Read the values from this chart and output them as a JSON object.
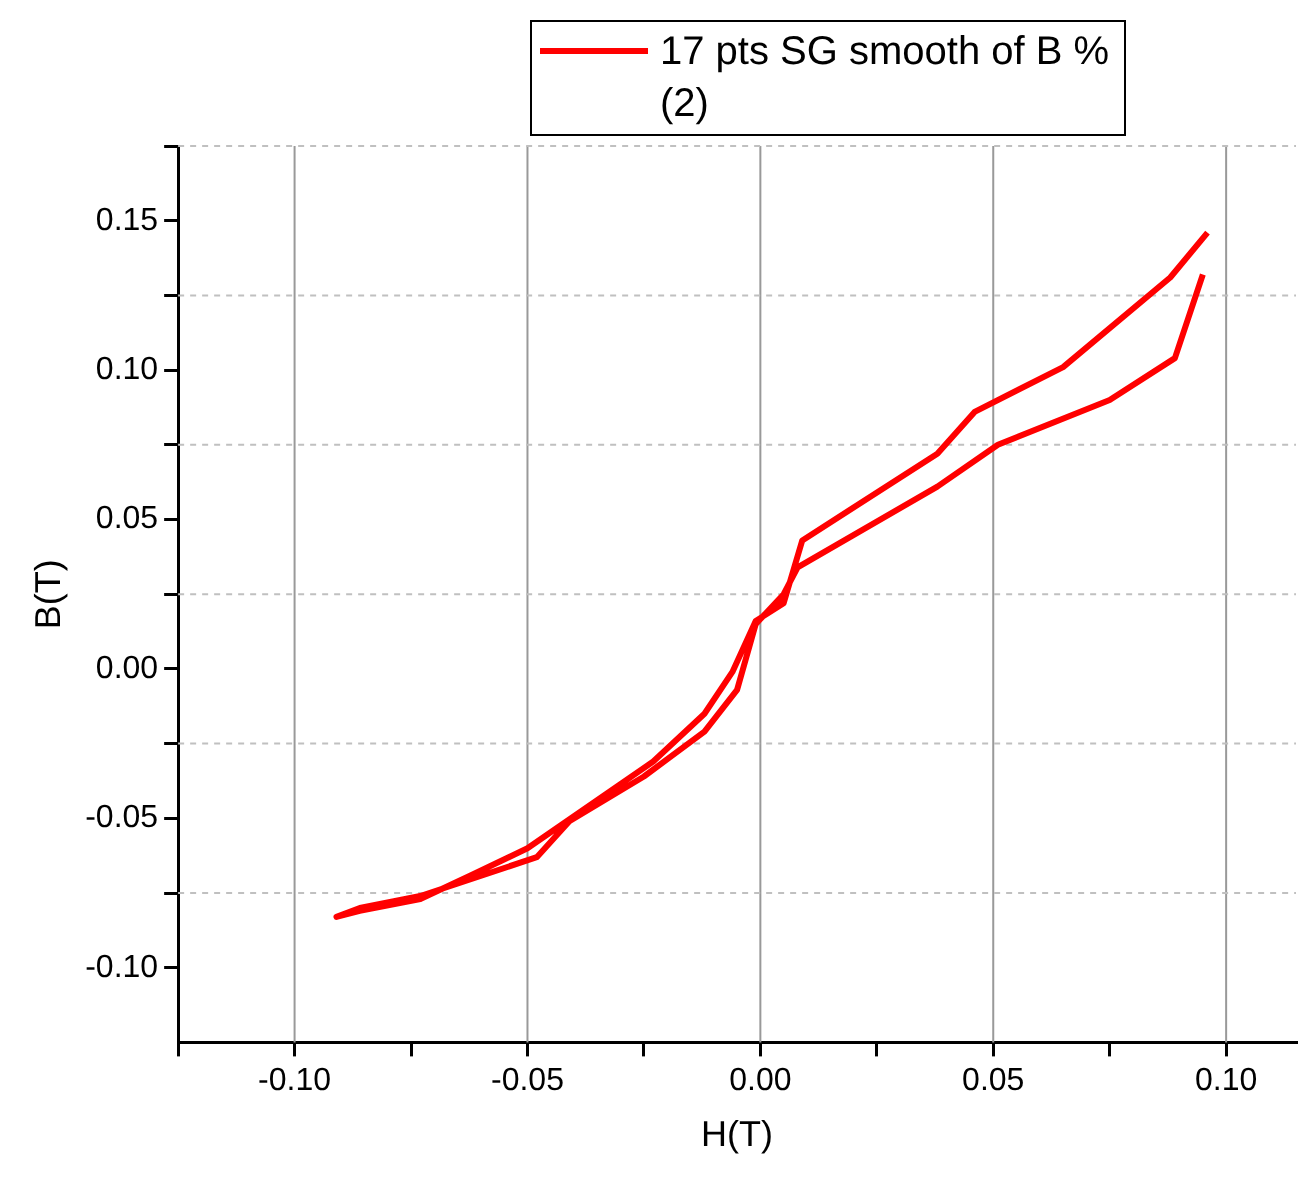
{
  "chart_data": {
    "type": "line",
    "xlabel": "H(T)",
    "ylabel": "B(T)",
    "xlim": [
      -0.125,
      0.115
    ],
    "ylim": [
      -0.125,
      0.175
    ],
    "xticks": [
      {
        "value": -0.125,
        "label": null
      },
      {
        "value": -0.1,
        "label": "-0.10"
      },
      {
        "value": -0.075,
        "label": null
      },
      {
        "value": -0.05,
        "label": "-0.05"
      },
      {
        "value": -0.025,
        "label": null
      },
      {
        "value": 0,
        "label": "0.00"
      },
      {
        "value": 0.025,
        "label": null
      },
      {
        "value": 0.05,
        "label": "0.05"
      },
      {
        "value": 0.075,
        "label": null
      },
      {
        "value": 0.1,
        "label": "0.10"
      }
    ],
    "yticks": [
      {
        "value": -0.1,
        "label": "-0.10"
      },
      {
        "value": -0.075,
        "label": null
      },
      {
        "value": -0.05,
        "label": "-0.05"
      },
      {
        "value": -0.025,
        "label": null
      },
      {
        "value": 0,
        "label": "0.00"
      },
      {
        "value": 0.025,
        "label": null
      },
      {
        "value": 0.05,
        "label": "0.05"
      },
      {
        "value": 0.075,
        "label": null
      },
      {
        "value": 0.1,
        "label": "0.10"
      },
      {
        "value": 0.125,
        "label": null
      },
      {
        "value": 0.15,
        "label": "0.15"
      },
      {
        "value": 0.175,
        "label": null
      }
    ],
    "grid": true,
    "legend": "top",
    "marker": "none",
    "line_style": "solid",
    "series": [
      {
        "name": "17 pts SG smooth of B % (2)",
        "color": "#ff0000",
        "x": [
          0.095,
          0.089,
          0.075,
          0.051,
          0.038,
          0.008,
          0.005,
          -0.001,
          -0.005,
          -0.012,
          -0.025,
          -0.041,
          -0.048,
          -0.073,
          -0.086,
          -0.091,
          -0.086,
          -0.073,
          -0.062,
          -0.05,
          -0.023,
          -0.012,
          -0.006,
          -0.001,
          0.005,
          0.009,
          0.038,
          0.046,
          0.065,
          0.088,
          0.096
        ],
        "values": [
          0.132,
          0.104,
          0.09,
          0.075,
          0.061,
          0.034,
          0.025,
          0.015,
          -0.007,
          -0.021,
          -0.036,
          -0.051,
          -0.063,
          -0.076,
          -0.08,
          -0.083,
          -0.081,
          -0.077,
          -0.069,
          -0.06,
          -0.031,
          -0.015,
          -0.001,
          0.016,
          0.022,
          0.043,
          0.072,
          0.086,
          0.101,
          0.131,
          0.146
        ]
      }
    ]
  }
}
